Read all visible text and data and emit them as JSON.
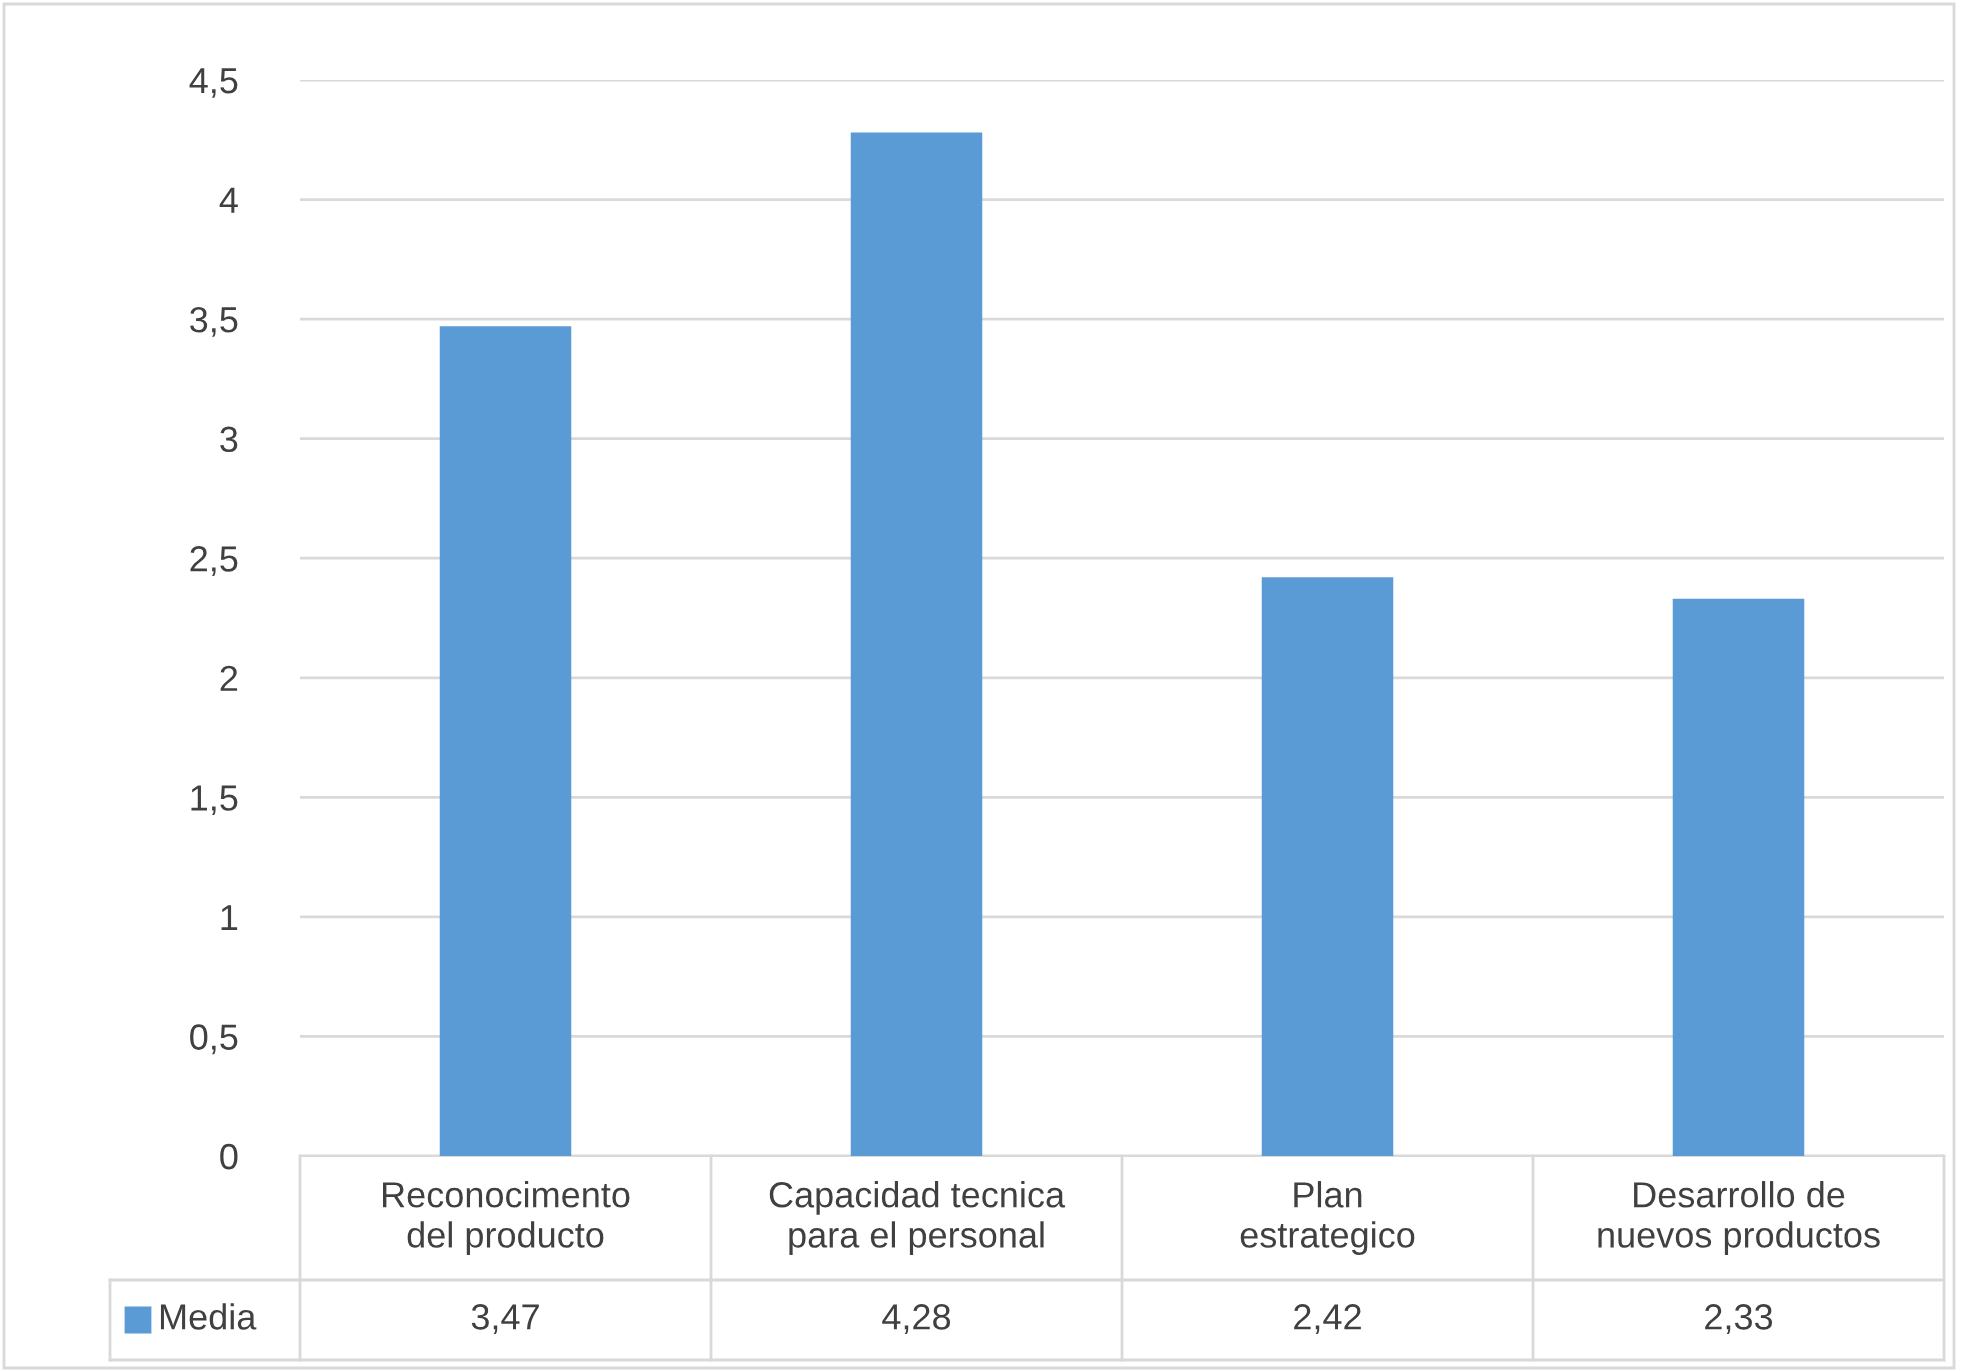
{
  "chart_data": {
    "type": "bar",
    "categories": [
      "Reconocimento del producto",
      "Capacidad tecnica para el personal",
      "Plan estrategico",
      "Desarrollo de nuevos productos"
    ],
    "series": [
      {
        "name": "Media",
        "color": "#5b9bd5",
        "values": [
          3.47,
          4.28,
          2.42,
          2.33
        ],
        "value_labels": [
          "3,47",
          "4,28",
          "2,42",
          "2,33"
        ]
      }
    ],
    "ylim": [
      0,
      4.5
    ],
    "yticks": [
      0,
      {
        "value": 0.5,
        "label": "0,5"
      },
      1,
      {
        "value": 1.5,
        "label": "1,5"
      },
      2,
      {
        "value": 2.5,
        "label": "2,5"
      },
      3,
      {
        "value": 3.5,
        "label": "3,5"
      },
      4,
      {
        "value": 4.5,
        "label": "4,5"
      }
    ],
    "grid": "y"
  }
}
